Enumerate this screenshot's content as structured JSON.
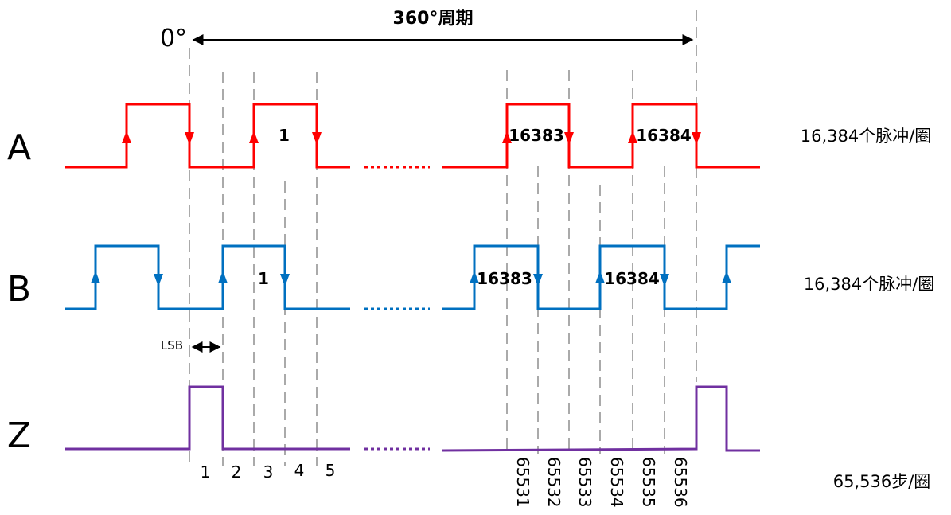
{
  "title": "360°周期",
  "zero_label": "0°",
  "channels": [
    {
      "id": "A",
      "label": "A",
      "color": "#ff0000",
      "pulse_labels": [
        "1",
        "16383",
        "16384"
      ],
      "rate": "16,384个脉冲/圈"
    },
    {
      "id": "B",
      "label": "B",
      "color": "#0070c0",
      "pulse_labels": [
        "1",
        "16383",
        "16384"
      ],
      "rate": "16,384个脉冲/圈"
    },
    {
      "id": "Z",
      "label": "Z",
      "color": "#7030a0",
      "rate": "65,536步/圈"
    }
  ],
  "lsb_label": "LSB",
  "step_numbers_left": [
    "1",
    "2",
    "3",
    "4",
    "5"
  ],
  "step_numbers_right": [
    "65531",
    "65532",
    "65533",
    "65534",
    "65535",
    "65536"
  ]
}
